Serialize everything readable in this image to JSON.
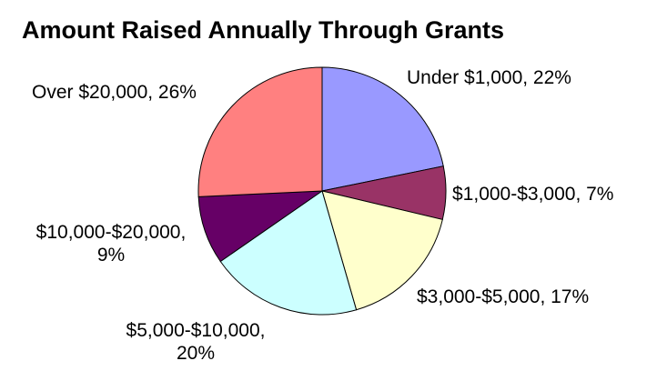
{
  "chart_data": {
    "type": "pie",
    "title": "Amount Raised Annually Through Grants",
    "slices": [
      {
        "label": "Under $1,000",
        "value": 22,
        "pct_text": "22%",
        "color": "#9999ff"
      },
      {
        "label": "$1,000-$3,000",
        "value": 7,
        "pct_text": "7%",
        "color": "#993366"
      },
      {
        "label": "$3,000-$5,000",
        "value": 17,
        "pct_text": "17%",
        "color": "#ffffcc"
      },
      {
        "label": "$5,000-$10,000",
        "value": 20,
        "pct_text": "20%",
        "color": "#ccffff"
      },
      {
        "label": "$10,000-$20,000",
        "value": 9,
        "pct_text": "9%",
        "color": "#660066"
      },
      {
        "label": "Over $20,000",
        "value": 26,
        "pct_text": "26%",
        "color": "#ff8080"
      }
    ],
    "start_angle": "12 o'clock",
    "direction": "clockwise",
    "legend": "none",
    "label_style": "category, percent"
  }
}
